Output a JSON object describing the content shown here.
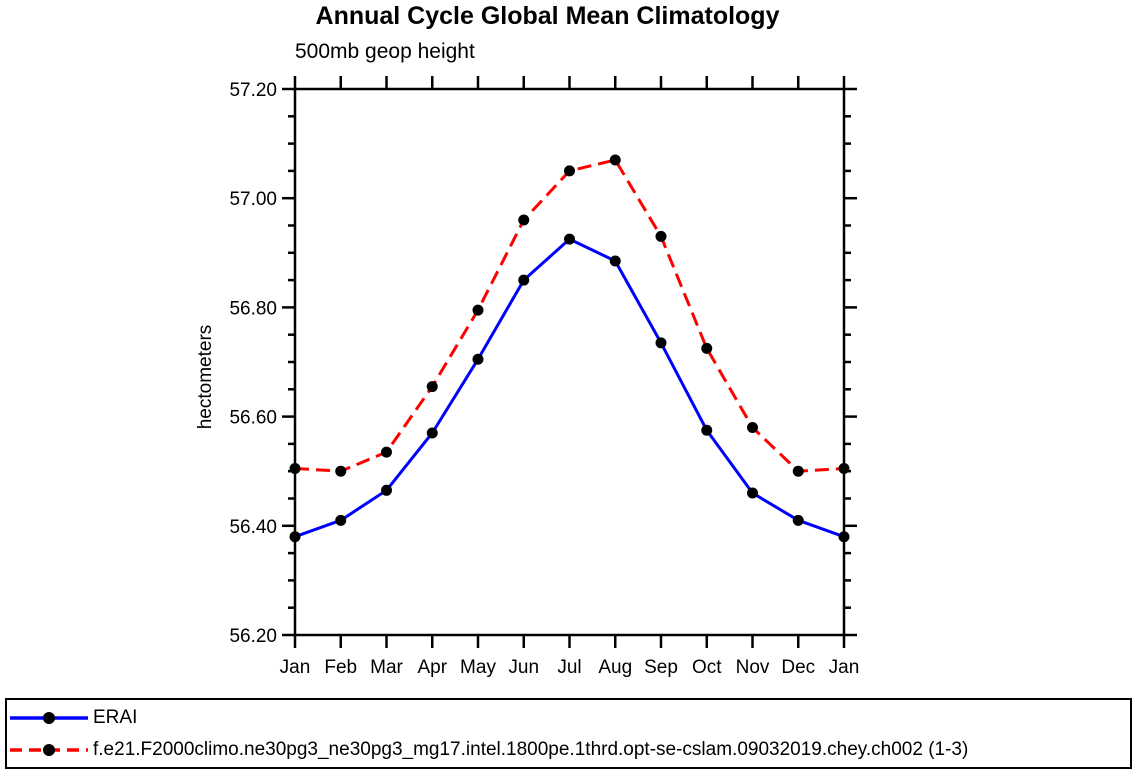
{
  "page": {
    "background": "#ffffff"
  },
  "chart_data": {
    "type": "line",
    "title": "Annual Cycle Global Mean Climatology",
    "subtitle": "500mb geop height",
    "ylabel": "hectometers",
    "xlabel": "",
    "categories": [
      "Jan",
      "Feb",
      "Mar",
      "Apr",
      "May",
      "Jun",
      "Jul",
      "Aug",
      "Sep",
      "Oct",
      "Nov",
      "Dec",
      "Jan"
    ],
    "ylim": [
      56.2,
      57.2
    ],
    "yticks": [
      56.2,
      56.4,
      56.6,
      56.8,
      57.0,
      57.2
    ],
    "ytick_labels": [
      "56.20",
      "56.40",
      "56.60",
      "56.80",
      "57.00",
      "57.20"
    ],
    "yminor_step": 0.05,
    "grid": false,
    "legend_position": "bottom-left-box",
    "axis_color": "#000000",
    "marker_color": "#000000",
    "marker_shape": "filled-circle",
    "series": [
      {
        "name": "ERAI",
        "color": "#0000ff",
        "line_style": "solid",
        "values": [
          56.38,
          56.41,
          56.465,
          56.57,
          56.705,
          56.85,
          56.925,
          56.885,
          56.735,
          56.575,
          56.46,
          56.41,
          56.38
        ]
      },
      {
        "name": "f.e21.F2000climo.ne30pg3_ne30pg3_mg17.intel.1800pe.1thrd.opt-se-cslam.09032019.chey.ch002 (1-3)",
        "color": "#ff0000",
        "line_style": "dashed",
        "values": [
          56.505,
          56.5,
          56.535,
          56.655,
          56.795,
          56.96,
          57.05,
          57.07,
          56.93,
          56.725,
          56.58,
          56.5,
          56.505
        ]
      }
    ]
  }
}
